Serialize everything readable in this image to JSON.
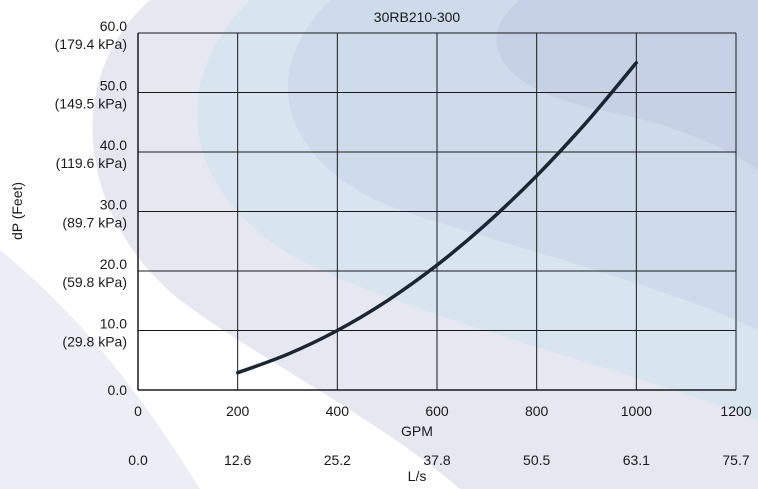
{
  "chart_data": {
    "type": "line",
    "title": "30RB210-300",
    "xlabel": "GPM",
    "x2label": "L/s",
    "ylabel": "dP (Feet)",
    "xlim": [
      0,
      1200
    ],
    "ylim": [
      0,
      60
    ],
    "grid": true,
    "x_ticks": [
      0,
      200,
      400,
      600,
      800,
      1000,
      1200
    ],
    "x_tick_labels": [
      "0",
      "200",
      "400",
      "600",
      "800",
      "1000",
      "1200"
    ],
    "x2_tick_labels": [
      "0.0",
      "12.6",
      "25.2",
      "37.8",
      "50.5",
      "63.1",
      "75.7"
    ],
    "y_ticks": [
      0,
      10,
      20,
      30,
      40,
      50,
      60
    ],
    "y_tick_labels": [
      "0.0",
      "10.0",
      "20.0",
      "30.0",
      "40.0",
      "50.0",
      "60.0"
    ],
    "y_tick_sublabels": [
      "",
      "(29.8 kPa)",
      "(59.8 kPa)",
      "(89.7 kPa)",
      "(119.6 kPa)",
      "(149.5 kPa)",
      "(179.4 kPa)"
    ],
    "series": [
      {
        "x": [
          200,
          300,
          400,
          500,
          600,
          700,
          800,
          900,
          1000
        ],
        "values": [
          2.9,
          6.0,
          10.0,
          15.0,
          21.0,
          28.0,
          36.0,
          45.0,
          55.0
        ]
      }
    ],
    "colors": {
      "line": "#1a2632",
      "grid": "#1a1a1a"
    }
  }
}
